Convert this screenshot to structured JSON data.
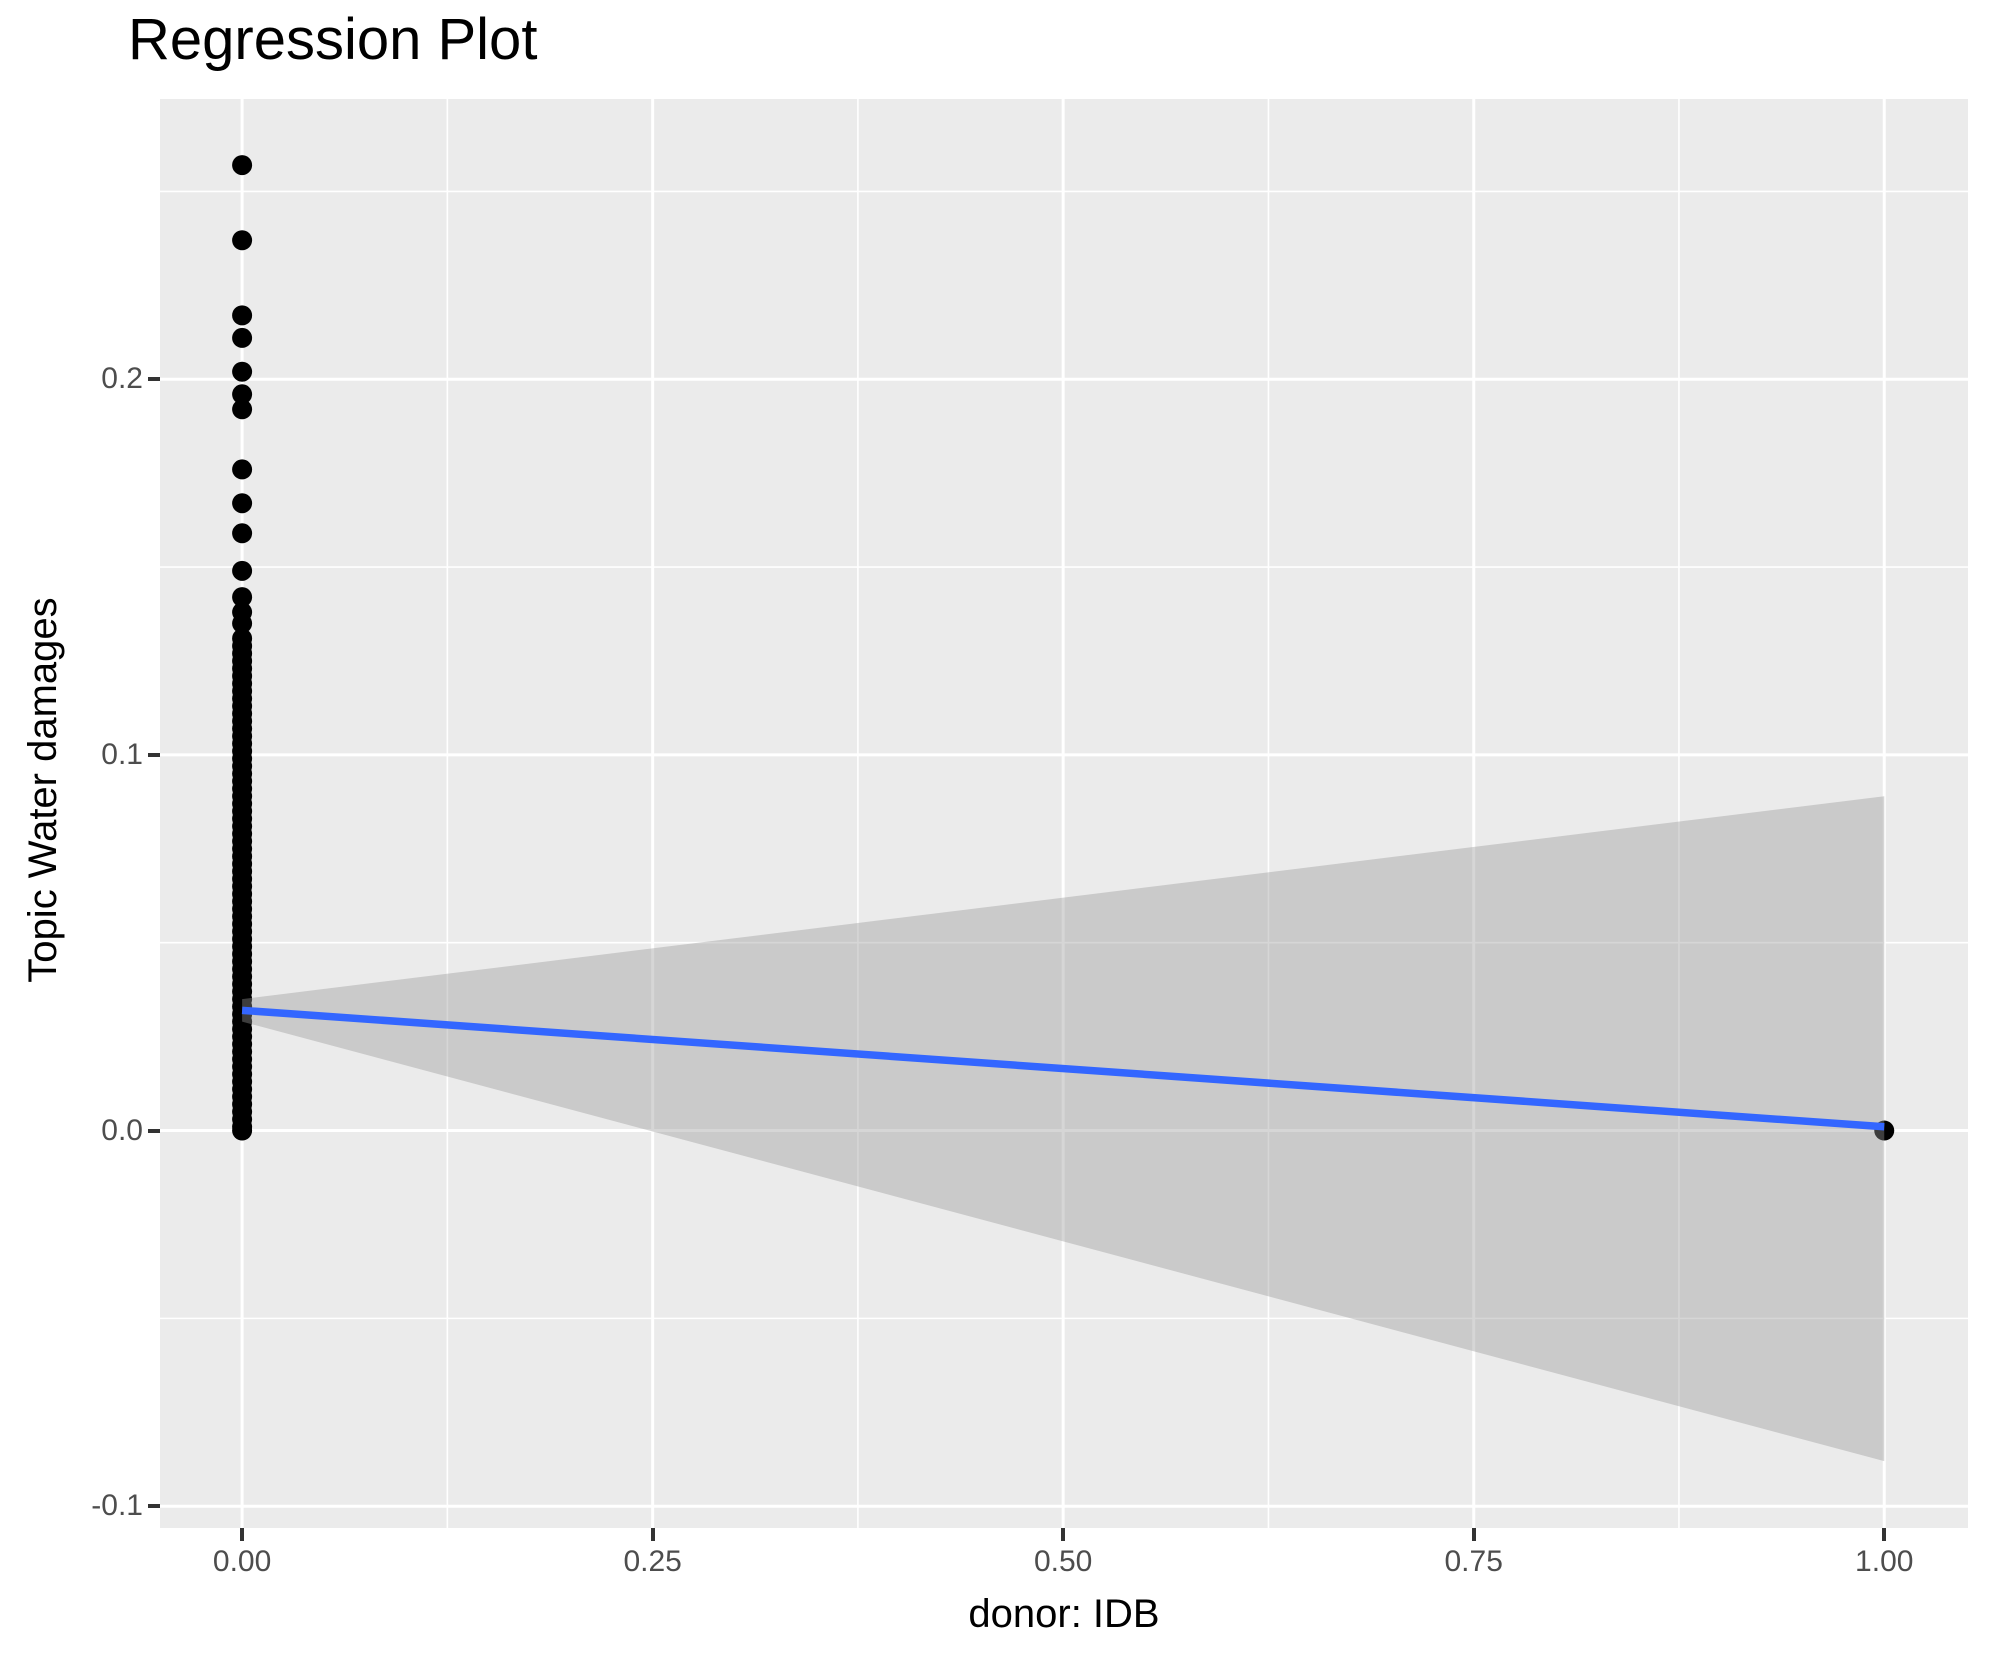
{
  "colors": {
    "background": "#FFFFFF",
    "panel_background": "#EBEBEB",
    "grid": "#FFFFFF",
    "tick_label": "#4D4D4D",
    "tick_mark": "#333333",
    "axis_title": "#000000",
    "point": "#000000",
    "regression_line": "#3366FF",
    "band_fill": "#999999",
    "band_opacity": 0.4
  },
  "chart_data": {
    "type": "scatter",
    "title": "Regression Plot",
    "xlabel": "donor: IDB",
    "ylabel": "Topic Water damages",
    "xlim": [
      -0.05,
      1.051
    ],
    "ylim": [
      -0.1058,
      0.2746
    ],
    "grid": "on",
    "x_ticks": {
      "values": [
        0.0,
        0.25,
        0.5,
        0.75,
        1.0
      ],
      "labels": [
        "0.00",
        "0.25",
        "0.50",
        "0.75",
        "1.00"
      ],
      "minor": [
        0.125,
        0.375,
        0.625,
        0.875
      ]
    },
    "y_ticks": {
      "values": [
        -0.1,
        0.0,
        0.1,
        0.2
      ],
      "labels": [
        "-0.1",
        "0.0",
        "0.1",
        "0.2"
      ],
      "minor": [
        -0.05,
        0.05,
        0.15,
        0.25
      ]
    },
    "points": {
      "column": {
        "x": 0.0,
        "y_values": [
          0.257,
          0.237,
          0.217,
          0.211,
          0.202,
          0.196,
          0.192,
          0.176,
          0.167,
          0.159,
          0.149,
          0.142,
          0.138,
          0.135,
          0.131,
          0.129,
          0.127,
          0.125,
          0.123,
          0.121,
          0.119,
          0.117,
          0.115,
          0.113,
          0.111,
          0.109,
          0.107,
          0.105,
          0.103,
          0.101,
          0.099,
          0.097,
          0.095,
          0.093,
          0.091,
          0.089,
          0.087,
          0.085,
          0.083,
          0.081,
          0.079,
          0.077,
          0.075,
          0.073,
          0.071,
          0.069,
          0.067,
          0.065,
          0.063,
          0.061,
          0.059,
          0.057,
          0.055,
          0.053,
          0.051,
          0.049,
          0.047,
          0.045,
          0.043,
          0.041,
          0.039,
          0.037,
          0.035,
          0.033,
          0.031,
          0.029,
          0.027,
          0.025,
          0.023,
          0.021,
          0.019,
          0.017,
          0.015,
          0.013,
          0.011,
          0.009,
          0.007,
          0.005,
          0.003,
          0.001,
          0.0
        ]
      },
      "singles": [
        {
          "x": 1.0,
          "y": 0.0
        }
      ],
      "radius_px": 10
    },
    "regression_line": {
      "x": [
        0.0,
        1.0
      ],
      "y": [
        0.032,
        0.001
      ]
    },
    "confidence_band": {
      "x": [
        0.0,
        1.0
      ],
      "upper": [
        0.035,
        0.089
      ],
      "lower": [
        0.029,
        -0.088
      ]
    }
  }
}
